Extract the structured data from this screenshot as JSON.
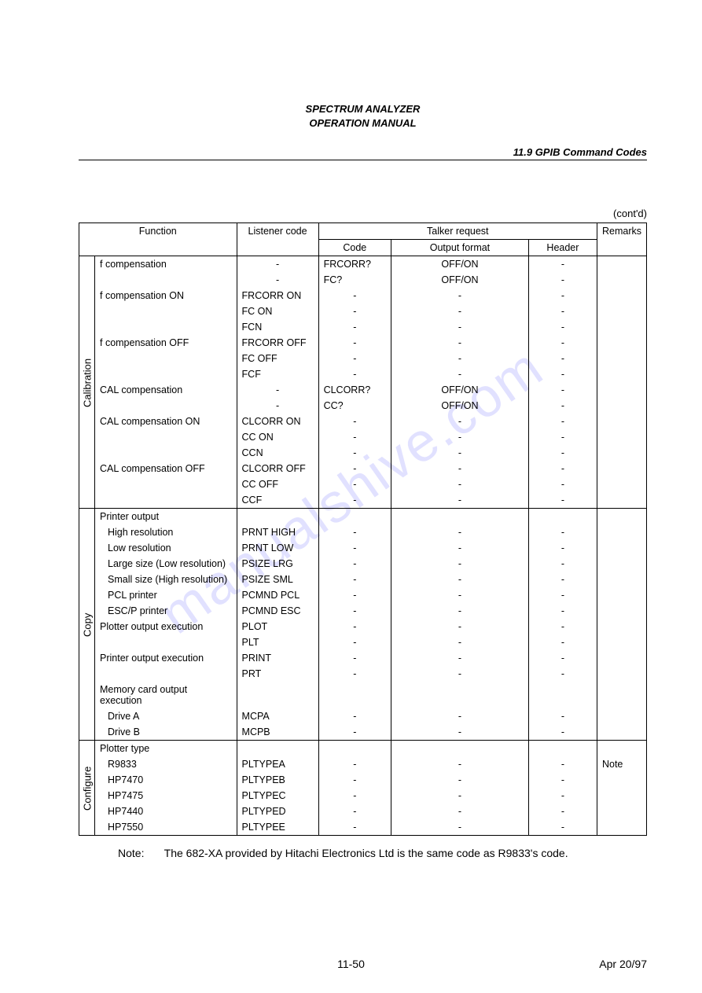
{
  "doc_title_line1": "SPECTRUM ANALYZER",
  "doc_title_line2": "OPERATION MANUAL",
  "section_title": "11.9  GPIB Command Codes",
  "contd": "(cont'd)",
  "watermark": "manualshive.com",
  "headers": {
    "function": "Function",
    "listener": "Listener code",
    "talker": "Talker request",
    "code": "Code",
    "output": "Output format",
    "header": "Header",
    "remarks": "Remarks"
  },
  "groups": [
    {
      "cat": "Calibration",
      "rows": [
        {
          "func": "f compensation",
          "lis": "-",
          "code": "FRCORR?",
          "out": "OFF/ON",
          "hdr": "-",
          "rem": ""
        },
        {
          "func": "",
          "lis": "-",
          "code": "FC?",
          "out": "OFF/ON",
          "hdr": "-",
          "rem": ""
        },
        {
          "func": "f compensation ON",
          "lis": "FRCORR ON",
          "code": "-",
          "out": "-",
          "hdr": "-",
          "rem": ""
        },
        {
          "func": "",
          "lis": "FC ON",
          "code": "-",
          "out": "-",
          "hdr": "-",
          "rem": ""
        },
        {
          "func": "",
          "lis": "FCN",
          "code": "-",
          "out": "-",
          "hdr": "-",
          "rem": ""
        },
        {
          "func": "f compensation OFF",
          "lis": "FRCORR OFF",
          "code": "-",
          "out": "-",
          "hdr": "-",
          "rem": ""
        },
        {
          "func": "",
          "lis": "FC OFF",
          "code": "-",
          "out": "-",
          "hdr": "-",
          "rem": ""
        },
        {
          "func": "",
          "lis": "FCF",
          "code": "-",
          "out": "-",
          "hdr": "-",
          "rem": ""
        },
        {
          "func": "CAL compensation",
          "lis": "-",
          "code": "CLCORR?",
          "out": "OFF/ON",
          "hdr": "-",
          "rem": ""
        },
        {
          "func": "",
          "lis": "-",
          "code": "CC?",
          "out": "OFF/ON",
          "hdr": "-",
          "rem": ""
        },
        {
          "func": "CAL compensation ON",
          "lis": "CLCORR ON",
          "code": "-",
          "out": "-",
          "hdr": "-",
          "rem": ""
        },
        {
          "func": "",
          "lis": "CC ON",
          "code": "-",
          "out": "-",
          "hdr": "-",
          "rem": ""
        },
        {
          "func": "",
          "lis": "CCN",
          "code": "-",
          "out": "-",
          "hdr": "-",
          "rem": ""
        },
        {
          "func": "CAL compensation OFF",
          "lis": "CLCORR OFF",
          "code": "-",
          "out": "-",
          "hdr": "-",
          "rem": ""
        },
        {
          "func": "",
          "lis": "CC OFF",
          "code": "-",
          "out": "-",
          "hdr": "-",
          "rem": ""
        },
        {
          "func": "",
          "lis": "CCF",
          "code": "-",
          "out": "-",
          "hdr": "-",
          "rem": ""
        }
      ]
    },
    {
      "cat": "Copy",
      "rows": [
        {
          "func": "Printer output",
          "lis": "",
          "code": "",
          "out": "",
          "hdr": "",
          "rem": ""
        },
        {
          "func": "  High resolution",
          "lis": "PRNT HIGH",
          "code": "-",
          "out": "-",
          "hdr": "-",
          "rem": ""
        },
        {
          "func": "  Low resolution",
          "lis": "PRNT LOW",
          "code": "-",
          "out": "-",
          "hdr": "-",
          "rem": ""
        },
        {
          "func": "  Large size (Low resolution)",
          "lis": "PSIZE LRG",
          "code": "-",
          "out": "-",
          "hdr": "-",
          "rem": ""
        },
        {
          "func": "  Small size (High resolution)",
          "lis": "PSIZE SML",
          "code": "-",
          "out": "-",
          "hdr": "-",
          "rem": ""
        },
        {
          "func": "  PCL printer",
          "lis": "PCMND PCL",
          "code": "-",
          "out": "-",
          "hdr": "-",
          "rem": ""
        },
        {
          "func": "  ESC/P printer",
          "lis": "PCMND ESC",
          "code": "-",
          "out": "-",
          "hdr": "-",
          "rem": ""
        },
        {
          "func": "Plotter output execution",
          "lis": "PLOT",
          "code": "-",
          "out": "-",
          "hdr": "-",
          "rem": ""
        },
        {
          "func": "",
          "lis": "PLT",
          "code": "-",
          "out": "-",
          "hdr": "-",
          "rem": ""
        },
        {
          "func": "Printer output execution",
          "lis": "PRINT",
          "code": "-",
          "out": "-",
          "hdr": "-",
          "rem": ""
        },
        {
          "func": "",
          "lis": "PRT",
          "code": "-",
          "out": "-",
          "hdr": "-",
          "rem": ""
        },
        {
          "func": "Memory card output execution",
          "lis": "",
          "code": "",
          "out": "",
          "hdr": "",
          "rem": ""
        },
        {
          "func": "  Drive A",
          "lis": "MCPA",
          "code": "-",
          "out": "-",
          "hdr": "-",
          "rem": ""
        },
        {
          "func": "  Drive B",
          "lis": "MCPB",
          "code": "-",
          "out": "-",
          "hdr": "-",
          "rem": ""
        }
      ]
    },
    {
      "cat": "Configure",
      "rows": [
        {
          "func": "Plotter type",
          "lis": "",
          "code": "",
          "out": "",
          "hdr": "",
          "rem": ""
        },
        {
          "func": "  R9833",
          "lis": "PLTYPEA",
          "code": "-",
          "out": "-",
          "hdr": "-",
          "rem": "Note"
        },
        {
          "func": "  HP7470",
          "lis": "PLTYPEB",
          "code": "-",
          "out": "-",
          "hdr": "-",
          "rem": ""
        },
        {
          "func": "  HP7475",
          "lis": "PLTYPEC",
          "code": "-",
          "out": "-",
          "hdr": "-",
          "rem": ""
        },
        {
          "func": "  HP7440",
          "lis": "PLTYPED",
          "code": "-",
          "out": "-",
          "hdr": "-",
          "rem": ""
        },
        {
          "func": "  HP7550",
          "lis": "PLTYPEE",
          "code": "-",
          "out": "-",
          "hdr": "-",
          "rem": ""
        }
      ]
    }
  ],
  "note_label": "Note:",
  "note_text": "The 682-XA provided by Hitachi Electronics Ltd is the same code as R9833's code.",
  "page_number": "11-50",
  "page_date": "Apr 20/97"
}
